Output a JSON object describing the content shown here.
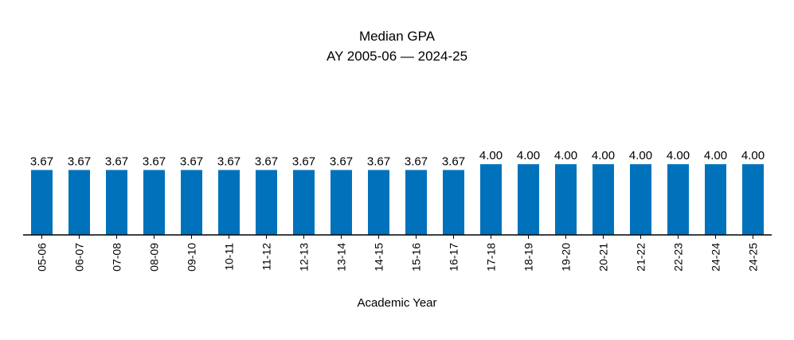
{
  "chart_data": {
    "type": "bar",
    "title": "Median GPA",
    "subtitle": "AY 2005-06 — 2024-25",
    "xlabel": "Academic Year",
    "ylabel": "",
    "ylim": [
      0,
      4.6
    ],
    "categories": [
      "05-06",
      "06-07",
      "07-08",
      "08-09",
      "09-10",
      "10-11",
      "11-12",
      "12-13",
      "13-14",
      "14-15",
      "15-16",
      "16-17",
      "17-18",
      "18-19",
      "19-20",
      "20-21",
      "21-22",
      "22-23",
      "24-24",
      "24-25"
    ],
    "values": [
      3.67,
      3.67,
      3.67,
      3.67,
      3.67,
      3.67,
      3.67,
      3.67,
      3.67,
      3.67,
      3.67,
      3.67,
      4.0,
      4.0,
      4.0,
      4.0,
      4.0,
      4.0,
      4.0,
      4.0
    ],
    "data_labels": [
      "3.67",
      "3.67",
      "3.67",
      "3.67",
      "3.67",
      "3.67",
      "3.67",
      "3.67",
      "3.67",
      "3.67",
      "3.67",
      "3.67",
      "4.00",
      "4.00",
      "4.00",
      "4.00",
      "4.00",
      "4.00",
      "4.00",
      "4.00"
    ],
    "bar_color": "#0072BB",
    "axis_color": "#000000",
    "grid": false,
    "legend": "none"
  }
}
